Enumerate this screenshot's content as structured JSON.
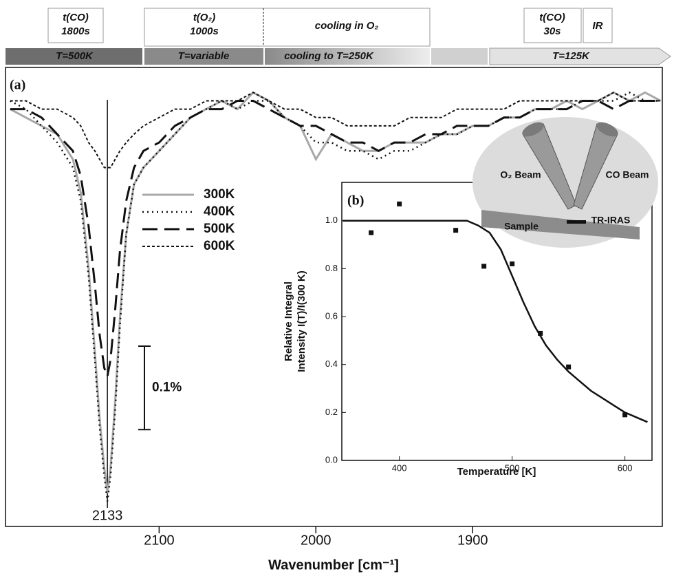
{
  "timeline": {
    "steps": [
      [
        "t(CO)",
        "1800s"
      ],
      [
        "t(O₂)",
        "1000s"
      ],
      [
        "cooling in O₂"
      ],
      [
        "t(CO)",
        "30s"
      ],
      [
        "IR"
      ]
    ],
    "stages": [
      "T=500K",
      "T=variable",
      "cooling to T=250K",
      "T=125K"
    ]
  },
  "chart_data": [
    {
      "type": "line",
      "panel_label": "(a)",
      "xlabel": "Wavenumber [cm⁻¹]",
      "xlim": [
        2198,
        1779
      ],
      "xticks": [
        2100,
        2000,
        1900
      ],
      "ylim": [
        -0.5,
        0.05
      ],
      "peak_marker": 2133,
      "scale_bar": {
        "value": 0.1,
        "label": "0.1%"
      },
      "x": [
        2195,
        2185,
        2175,
        2165,
        2155,
        2150,
        2145,
        2141,
        2138,
        2135,
        2133,
        2131,
        2128,
        2125,
        2121,
        2116,
        2110,
        2100,
        2090,
        2080,
        2070,
        2060,
        2050,
        2040,
        2030,
        2020,
        2010,
        2000,
        1990,
        1980,
        1970,
        1960,
        1950,
        1940,
        1930,
        1920,
        1910,
        1900,
        1890,
        1880,
        1870,
        1860,
        1850,
        1840,
        1830,
        1820,
        1810,
        1800,
        1790,
        1780
      ],
      "series": [
        {
          "name": "300K",
          "color": "#a8a8a8",
          "dash": "none",
          "width": 3,
          "values": [
            0.0,
            -0.01,
            -0.02,
            -0.03,
            -0.06,
            -0.1,
            -0.19,
            -0.29,
            -0.37,
            -0.43,
            -0.46,
            -0.43,
            -0.35,
            -0.25,
            -0.15,
            -0.09,
            -0.07,
            -0.05,
            -0.03,
            -0.01,
            0.0,
            0.01,
            0.0,
            0.02,
            0.01,
            -0.01,
            -0.02,
            -0.06,
            -0.03,
            -0.04,
            -0.05,
            -0.05,
            -0.04,
            -0.04,
            -0.04,
            -0.03,
            -0.03,
            -0.02,
            -0.02,
            -0.01,
            -0.01,
            0.0,
            0.0,
            0.01,
            0.0,
            0.01,
            0.02,
            0.01,
            0.02,
            0.01
          ]
        },
        {
          "name": "400K",
          "color": "#111111",
          "dash": "2,5",
          "width": 2.5,
          "values": [
            0.01,
            0.0,
            -0.02,
            -0.04,
            -0.07,
            -0.11,
            -0.2,
            -0.3,
            -0.38,
            -0.44,
            -0.47,
            -0.44,
            -0.36,
            -0.26,
            -0.15,
            -0.09,
            -0.07,
            -0.05,
            -0.03,
            -0.01,
            0.0,
            0.01,
            0.0,
            0.01,
            0.01,
            -0.01,
            -0.02,
            -0.04,
            -0.04,
            -0.05,
            -0.05,
            -0.06,
            -0.05,
            -0.05,
            -0.04,
            -0.03,
            -0.03,
            -0.02,
            -0.02,
            -0.01,
            -0.01,
            0.0,
            0.0,
            0.0,
            0.01,
            0.01,
            0.01,
            0.02,
            0.01,
            0.01
          ]
        },
        {
          "name": "500K",
          "color": "#111111",
          "dash": "22,10",
          "width": 3,
          "values": [
            0.0,
            0.0,
            -0.01,
            -0.03,
            -0.05,
            -0.08,
            -0.14,
            -0.21,
            -0.27,
            -0.31,
            -0.32,
            -0.3,
            -0.24,
            -0.17,
            -0.11,
            -0.07,
            -0.05,
            -0.04,
            -0.02,
            -0.01,
            0.0,
            0.0,
            0.01,
            0.01,
            0.0,
            -0.01,
            -0.02,
            -0.02,
            -0.03,
            -0.04,
            -0.04,
            -0.05,
            -0.04,
            -0.04,
            -0.03,
            -0.03,
            -0.02,
            -0.02,
            -0.02,
            -0.01,
            -0.01,
            0.0,
            0.0,
            0.0,
            0.01,
            0.01,
            0.0,
            0.01,
            0.01,
            0.01
          ]
        },
        {
          "name": "600K",
          "color": "#111111",
          "dash": "4,3",
          "width": 2,
          "values": [
            0.01,
            0.01,
            0.0,
            0.0,
            -0.01,
            -0.02,
            -0.04,
            -0.05,
            -0.06,
            -0.07,
            -0.07,
            -0.07,
            -0.06,
            -0.05,
            -0.04,
            -0.03,
            -0.02,
            -0.01,
            0.0,
            0.0,
            0.01,
            0.01,
            0.01,
            0.02,
            0.01,
            0.0,
            0.0,
            -0.01,
            -0.01,
            -0.02,
            -0.02,
            -0.02,
            -0.02,
            -0.01,
            -0.01,
            -0.01,
            0.0,
            0.0,
            0.0,
            0.0,
            0.01,
            0.01,
            0.01,
            0.01,
            0.01,
            0.01,
            0.02,
            0.01,
            0.01,
            0.01
          ]
        }
      ]
    },
    {
      "type": "scatter",
      "panel_label": "(b)",
      "xlabel": "Temperature [K]",
      "ylabel": [
        "Relative Integral",
        "Intensity I(T)/I(300 K)"
      ],
      "xlim": [
        349,
        624
      ],
      "xticks": [
        400,
        500,
        600
      ],
      "ylim": [
        0,
        1.16
      ],
      "yticks": [
        {
          "value": 0,
          "label": "0.0"
        },
        0.2,
        0.4,
        0.6,
        0.8,
        {
          "value": 1,
          "label": "1.0"
        }
      ],
      "series": [
        {
          "mode": "markers",
          "color": "#111111",
          "x": [
            375,
            400,
            450,
            475,
            500,
            525,
            550,
            600
          ],
          "values": [
            0.95,
            1.07,
            0.96,
            0.81,
            0.82,
            0.53,
            0.39,
            0.19
          ]
        },
        {
          "mode": "line",
          "color": "#111111",
          "x": [
            350,
            360,
            370,
            380,
            390,
            400,
            410,
            420,
            430,
            440,
            450,
            460,
            470,
            480,
            490,
            500,
            510,
            520,
            530,
            540,
            550,
            560,
            570,
            580,
            590,
            600,
            610,
            620
          ],
          "values": [
            1.0,
            1.0,
            1.0,
            1.0,
            1.0,
            1.0,
            1.0,
            1.0,
            1.0,
            1.0,
            1.0,
            1.0,
            0.98,
            0.95,
            0.88,
            0.77,
            0.66,
            0.56,
            0.48,
            0.42,
            0.37,
            0.33,
            0.29,
            0.26,
            0.23,
            0.2,
            0.18,
            0.16
          ]
        }
      ]
    }
  ],
  "diagram": {
    "o2_beam": "O₂ Beam",
    "co_beam": "CO Beam",
    "sample": "Sample",
    "tr_iras": "TR-IRAS"
  }
}
